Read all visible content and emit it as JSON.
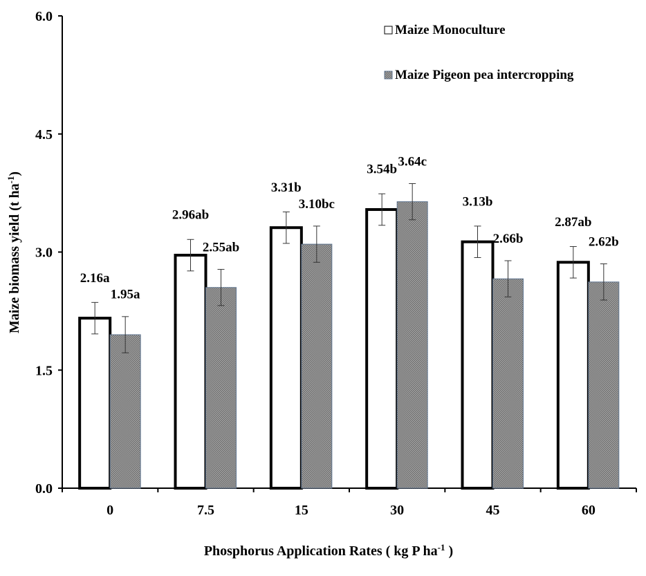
{
  "chart_data": {
    "type": "bar",
    "title": "",
    "xlabel": "Phosphorus Application Rates ( kg P ha",
    "xlabel_sup": "-1",
    "xlabel_end": " )",
    "ylabel": "Maize biomass yield   (t ha",
    "ylabel_sup": "-1",
    "ylabel_end": ")",
    "ylim": [
      0,
      6
    ],
    "yticks": [
      "0.0",
      "1.5",
      "3.0",
      "4.5",
      "6.0"
    ],
    "categories": [
      "0",
      "7.5",
      "15",
      "30",
      "45",
      "60"
    ],
    "legend_position": "top-right",
    "grid": false,
    "series": [
      {
        "name": "Maize Monoculture",
        "values": [
          2.16,
          2.96,
          3.31,
          3.54,
          3.13,
          2.87
        ],
        "errors": [
          0.2,
          0.2,
          0.2,
          0.2,
          0.2,
          0.2
        ],
        "labels": [
          "2.16a",
          "2.96ab",
          "3.31b",
          "3.54b",
          "3.13b",
          "2.87ab"
        ],
        "fill": "#ffffff",
        "stroke": "#000000"
      },
      {
        "name": "Maize Pigeon pea intercropping",
        "values": [
          1.95,
          2.55,
          3.1,
          3.64,
          2.66,
          2.62
        ],
        "errors": [
          0.23,
          0.23,
          0.23,
          0.23,
          0.23,
          0.23
        ],
        "labels": [
          "1.95a",
          "2.55ab",
          "3.10bc",
          "3.64c",
          "2.66b",
          "2.62b"
        ],
        "fill": "#8c8c8c",
        "stroke": "#5f7590"
      }
    ]
  }
}
